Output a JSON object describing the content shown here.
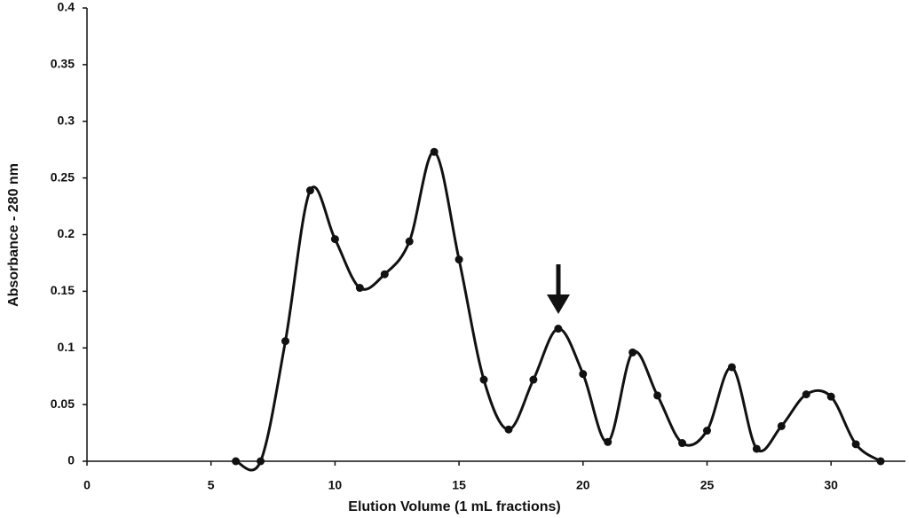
{
  "chart_data": {
    "type": "scatter",
    "x_label": "Elution Volume (1 mL fractions)",
    "y_label": "Absorbance - 280 nm",
    "x": [
      6,
      7,
      8,
      9,
      10,
      11,
      12,
      13,
      14,
      15,
      16,
      17,
      18,
      19,
      20,
      21,
      22,
      23,
      24,
      25,
      26,
      27,
      28,
      29,
      30,
      31,
      32
    ],
    "values": [
      0,
      0,
      0.106,
      0.239,
      0.196,
      0.153,
      0.165,
      0.194,
      0.273,
      0.178,
      0.072,
      0.028,
      0.072,
      0.117,
      0.077,
      0.017,
      0.096,
      0.058,
      0.016,
      0.027,
      0.083,
      0.011,
      0.031,
      0.059,
      0.057,
      0.015,
      0
    ],
    "color": "#111111",
    "smooth": true,
    "xlim": [
      0,
      33
    ],
    "xticks": [
      0,
      5,
      10,
      15,
      20,
      25,
      30
    ],
    "ylim": [
      0,
      0.4
    ],
    "yticks": [
      0,
      0.05,
      0.1,
      0.15,
      0.2,
      0.25,
      0.3,
      0.35,
      0.4
    ]
  }
}
